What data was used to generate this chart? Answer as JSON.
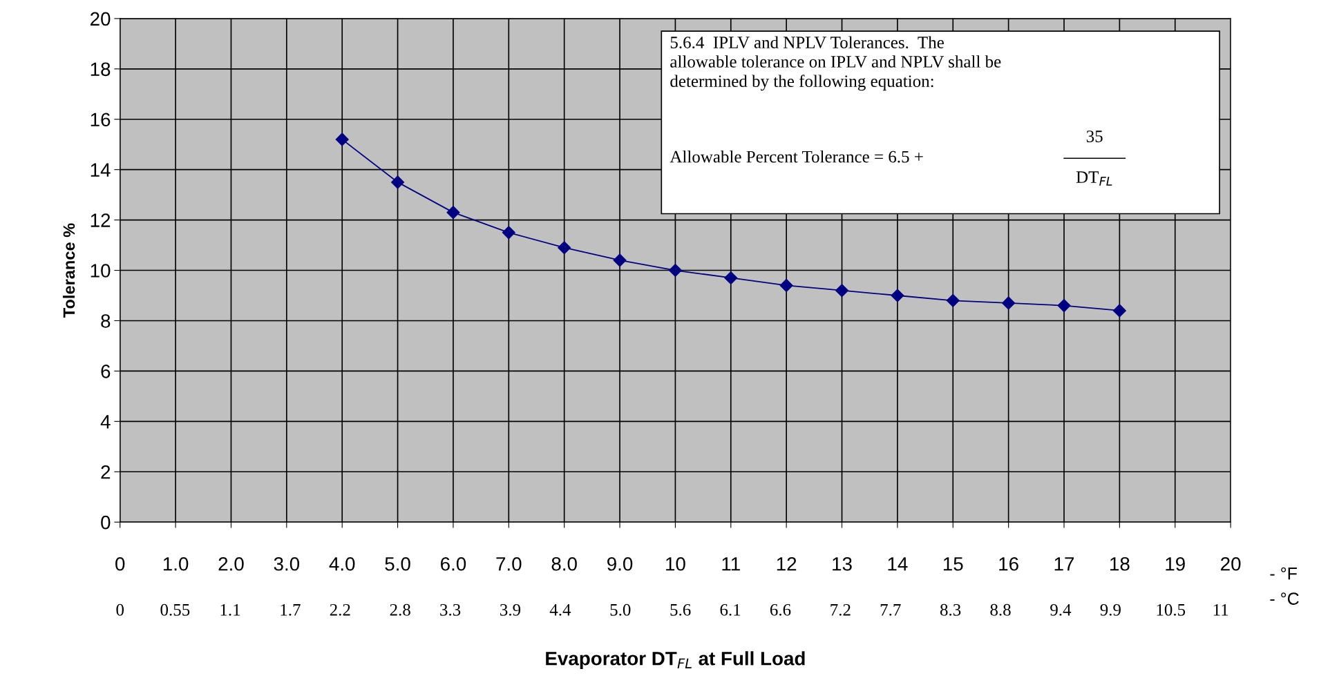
{
  "chart_data": {
    "type": "line",
    "xlabel": "Evaporator DT$_{FL}$ at Full Load",
    "ylabel": "Tolerance %",
    "x": [
      4,
      5,
      6,
      7,
      8,
      9,
      10,
      11,
      12,
      13,
      14,
      15,
      16,
      17,
      18
    ],
    "series": [
      {
        "color": "#000080",
        "values": [
          15.2,
          13.5,
          12.3,
          11.5,
          10.9,
          10.4,
          10.0,
          9.7,
          9.4,
          9.2,
          9.0,
          8.8,
          8.7,
          8.6,
          8.4
        ]
      }
    ],
    "marker": "diamond",
    "line_style": "solid",
    "grid": true,
    "xlim": [
      0,
      20
    ],
    "xticks": [
      0,
      {
        "value": 1,
        "label": "1.0"
      },
      {
        "value": 2,
        "label": "2.0"
      },
      {
        "value": 3,
        "label": "3.0"
      },
      {
        "value": 4,
        "label": "4.0"
      },
      {
        "value": 5,
        "label": "5.0"
      },
      {
        "value": 6,
        "label": "6.0"
      },
      {
        "value": 7,
        "label": "7.0"
      },
      {
        "value": 8,
        "label": "8.0"
      },
      {
        "value": 9,
        "label": "9.0"
      },
      10,
      11,
      12,
      13,
      14,
      15,
      16,
      17,
      18,
      19,
      20
    ],
    "x2lim": [
      0,
      11.1
    ],
    "x2ticks": [
      0,
      0.55,
      1.1,
      1.7,
      2.2,
      2.8,
      3.3,
      3.9,
      4.4,
      {
        "value": 5,
        "label": "5.0"
      },
      5.6,
      6.1,
      6.6,
      7.2,
      7.7,
      8.3,
      8.8,
      9.4,
      9.9,
      10.5,
      11
    ],
    "ylim": [
      0,
      20
    ],
    "yticks": [
      0,
      2,
      4,
      6,
      8,
      10,
      12,
      14,
      16,
      18,
      20
    ],
    "annotations": [
      "- °F",
      "- °C",
      "5.6.4  IPLV and NPLV Tolerances.  The\nallowable tolerance on IPLV and NPLV shall be\ndetermined by the following equation:",
      "Allowable Percent Tolerance = 6.5 +",
      "35",
      "DT$_{FL}$"
    ]
  }
}
